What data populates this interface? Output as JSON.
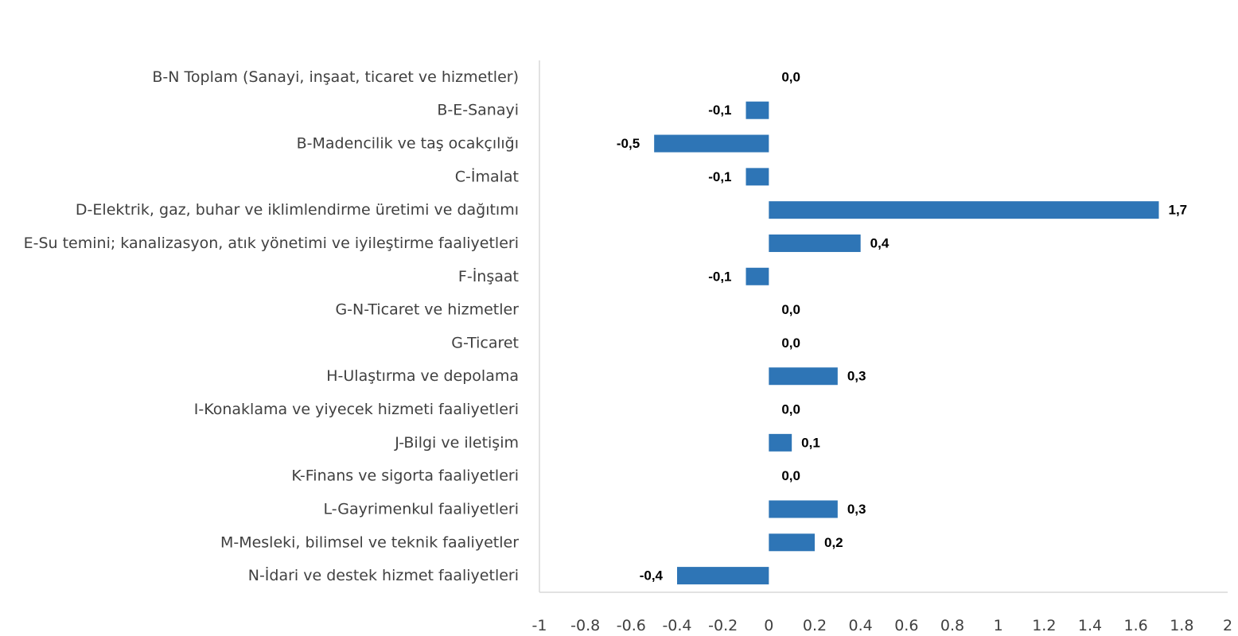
{
  "chart_data": {
    "type": "bar",
    "orientation": "horizontal",
    "title": "",
    "xlabel": "",
    "ylabel": "",
    "xlim": [
      -1,
      2
    ],
    "ticks": [
      -1,
      -0.8,
      -0.6,
      -0.4,
      -0.2,
      0,
      0.2,
      0.4,
      0.6,
      0.8,
      1,
      1.2,
      1.4,
      1.6,
      1.8,
      2
    ],
    "tick_labels": [
      "-1",
      "-0.8",
      "-0.6",
      "-0.4",
      "-0.2",
      "0",
      "0.2",
      "0.4",
      "0.6",
      "0.8",
      "1",
      "1.2",
      "1.4",
      "1.6",
      "1.8",
      "2"
    ],
    "grid": false,
    "legend": "none",
    "bar_color": "#2e75b6",
    "categories": [
      "B-N Toplam (Sanayi, inşaat, ticaret ve hizmetler)",
      "B-E-Sanayi",
      "B-Madencilik ve taş ocakçılığı",
      "C-İmalat",
      "D-Elektrik, gaz, buhar ve iklimlendirme üretimi ve dağıtımı",
      "E-Su temini; kanalizasyon, atık yönetimi ve iyileştirme faaliyetleri",
      "F-İnşaat",
      "G-N-Ticaret ve hizmetler",
      "G-Ticaret",
      "H-Ulaştırma ve depolama",
      "I-Konaklama ve yiyecek hizmeti faaliyetleri",
      "J-Bilgi ve iletişim",
      "K-Finans ve sigorta faaliyetleri",
      "L-Gayrimenkul faaliyetleri",
      "M-Mesleki, bilimsel ve teknik faaliyetler",
      "N-İdari ve destek hizmet faaliyetleri"
    ],
    "values": [
      0.0,
      -0.1,
      -0.5,
      -0.1,
      1.7,
      0.4,
      -0.1,
      0.0,
      0.0,
      0.3,
      0.0,
      0.1,
      0.0,
      0.3,
      0.2,
      -0.4
    ],
    "value_labels": [
      "0,0",
      "-0,1",
      "-0,5",
      "-0,1",
      "1,7",
      "0,4",
      "-0,1",
      "0,0",
      "0,0",
      "0,3",
      "0,0",
      "0,1",
      "0,0",
      "0,3",
      "0,2",
      "-0,4"
    ]
  }
}
